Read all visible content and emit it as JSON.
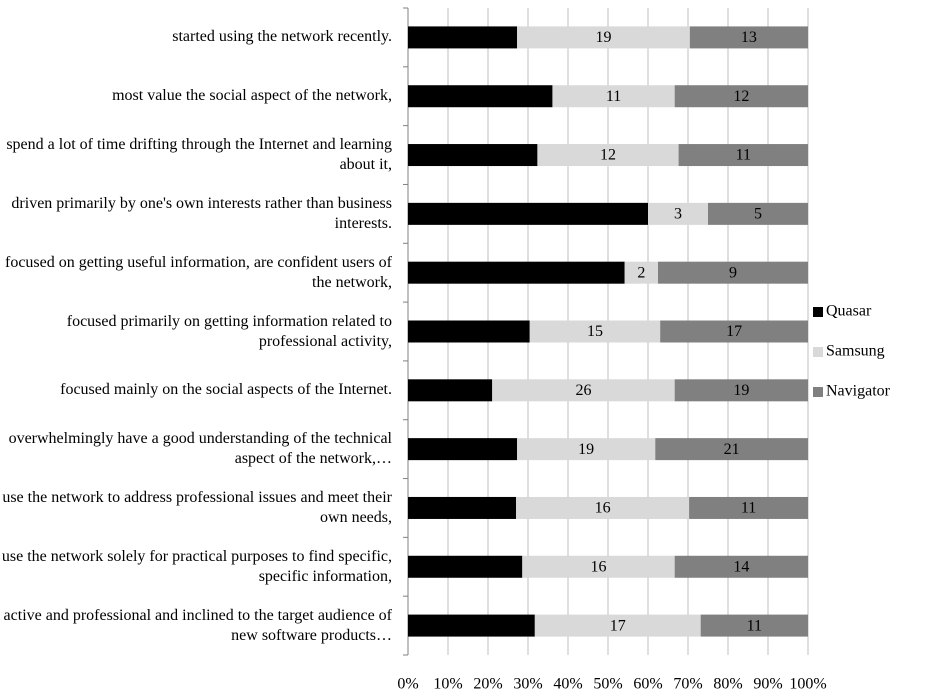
{
  "chart_data": {
    "type": "bar",
    "orientation": "horizontal",
    "stacking": "percent",
    "categories": [
      "started using the network recently.",
      "most value the social aspect of the network,",
      "spend a lot of time drifting through the Internet and learning about it,",
      "driven primarily by one's own interests rather than business interests.",
      "focused on getting useful information, are confident users of the network,",
      "focused primarily on getting information related to professional activity,",
      "focused mainly on the social aspects of the Internet.",
      "overwhelmingly have a good understanding of the technical aspect of the network,…",
      "use the network to address professional issues and meet their own needs,",
      "use the network solely for practical purposes to find specific, specific information,",
      "active and professional and inclined to the target audience of new software products…"
    ],
    "series": [
      {
        "name": "Quasar",
        "color": "#000000",
        "values": [
          12,
          13,
          11,
          12,
          13,
          14,
          12,
          15,
          10,
          12,
          13
        ]
      },
      {
        "name": "Samsung",
        "color": "#d9d9d9",
        "values": [
          19,
          11,
          12,
          3,
          2,
          15,
          26,
          19,
          16,
          16,
          17
        ]
      },
      {
        "name": "Navigator",
        "color": "#808080",
        "values": [
          13,
          12,
          11,
          5,
          9,
          17,
          19,
          21,
          11,
          14,
          11
        ]
      }
    ],
    "xlim": [
      0,
      100
    ],
    "xticks": [
      {
        "value": 0,
        "label": "0%"
      },
      {
        "value": 10,
        "label": "10%"
      },
      {
        "value": 20,
        "label": "20%"
      },
      {
        "value": 30,
        "label": "30%"
      },
      {
        "value": 40,
        "label": "40%"
      },
      {
        "value": 50,
        "label": "50%"
      },
      {
        "value": 60,
        "label": "60%"
      },
      {
        "value": 70,
        "label": "70%"
      },
      {
        "value": 80,
        "label": "80%"
      },
      {
        "value": 90,
        "label": "90%"
      },
      {
        "value": 100,
        "label": "100%"
      }
    ],
    "grid": true,
    "legend": "right"
  }
}
